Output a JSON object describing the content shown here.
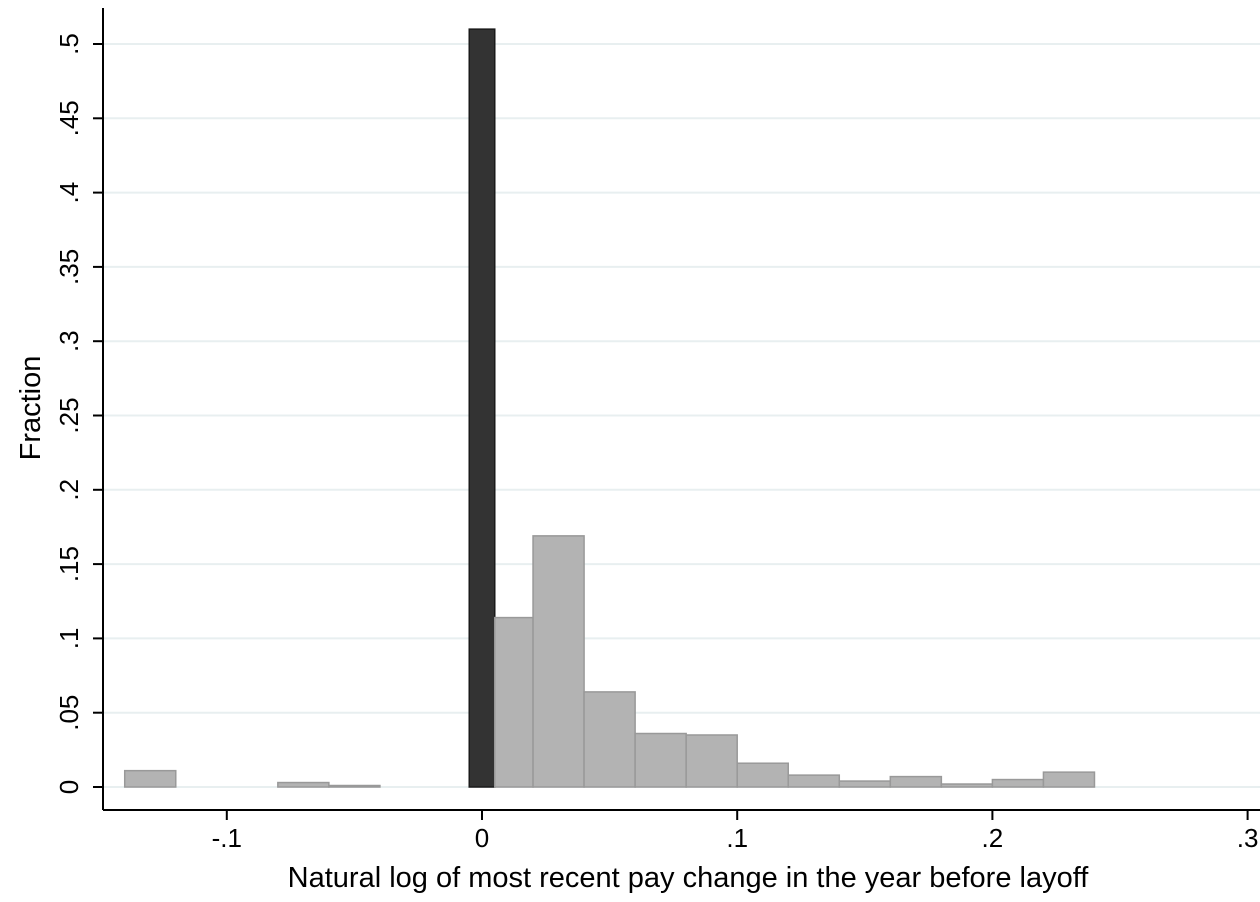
{
  "chart_data": {
    "type": "bar",
    "title": "",
    "xlabel": "Natural log of most recent pay change in the year before layoff",
    "ylabel": "Fraction",
    "xlim": [
      -0.15,
      0.3
    ],
    "ylim": [
      0,
      0.52
    ],
    "xticks": [
      {
        "value": -0.1,
        "label": "-.1"
      },
      {
        "value": 0,
        "label": "0"
      },
      {
        "value": 0.1,
        "label": ".1"
      },
      {
        "value": 0.2,
        "label": ".2"
      },
      {
        "value": 0.3,
        "label": ".3"
      }
    ],
    "yticks": [
      {
        "value": 0,
        "label": "0"
      },
      {
        "value": 0.05,
        "label": ".05"
      },
      {
        "value": 0.1,
        "label": ".1"
      },
      {
        "value": 0.15,
        "label": ".15"
      },
      {
        "value": 0.2,
        "label": ".2"
      },
      {
        "value": 0.25,
        "label": ".25"
      },
      {
        "value": 0.3,
        "label": ".3"
      },
      {
        "value": 0.35,
        "label": ".35"
      },
      {
        "value": 0.4,
        "label": ".4"
      },
      {
        "value": 0.45,
        "label": ".45"
      },
      {
        "value": 0.5,
        "label": ".5"
      }
    ],
    "grid": true,
    "bars": [
      {
        "x0": -0.14,
        "x1": -0.12,
        "value": 0.011,
        "highlight": false
      },
      {
        "x0": -0.08,
        "x1": -0.06,
        "value": 0.003,
        "highlight": false
      },
      {
        "x0": -0.06,
        "x1": -0.04,
        "value": 0.001,
        "highlight": false
      },
      {
        "x0": -0.005,
        "x1": 0.005,
        "value": 0.51,
        "highlight": true
      },
      {
        "x0": 0.005,
        "x1": 0.02,
        "value": 0.114,
        "highlight": false
      },
      {
        "x0": 0.02,
        "x1": 0.04,
        "value": 0.169,
        "highlight": false
      },
      {
        "x0": 0.04,
        "x1": 0.06,
        "value": 0.064,
        "highlight": false
      },
      {
        "x0": 0.06,
        "x1": 0.08,
        "value": 0.036,
        "highlight": false
      },
      {
        "x0": 0.08,
        "x1": 0.1,
        "value": 0.035,
        "highlight": false
      },
      {
        "x0": 0.1,
        "x1": 0.12,
        "value": 0.016,
        "highlight": false
      },
      {
        "x0": 0.12,
        "x1": 0.14,
        "value": 0.008,
        "highlight": false
      },
      {
        "x0": 0.14,
        "x1": 0.16,
        "value": 0.004,
        "highlight": false
      },
      {
        "x0": 0.16,
        "x1": 0.18,
        "value": 0.007,
        "highlight": false
      },
      {
        "x0": 0.18,
        "x1": 0.2,
        "value": 0.002,
        "highlight": false
      },
      {
        "x0": 0.2,
        "x1": 0.22,
        "value": 0.005,
        "highlight": false
      },
      {
        "x0": 0.22,
        "x1": 0.24,
        "value": 0.01,
        "highlight": false
      }
    ],
    "colors": {
      "bar_fill": "#b3b3b3",
      "bar_stroke": "#999999",
      "highlight_fill": "#333333",
      "highlight_stroke": "#1a1a1a",
      "grid": "#e8eff0",
      "axis": "#000000"
    }
  }
}
